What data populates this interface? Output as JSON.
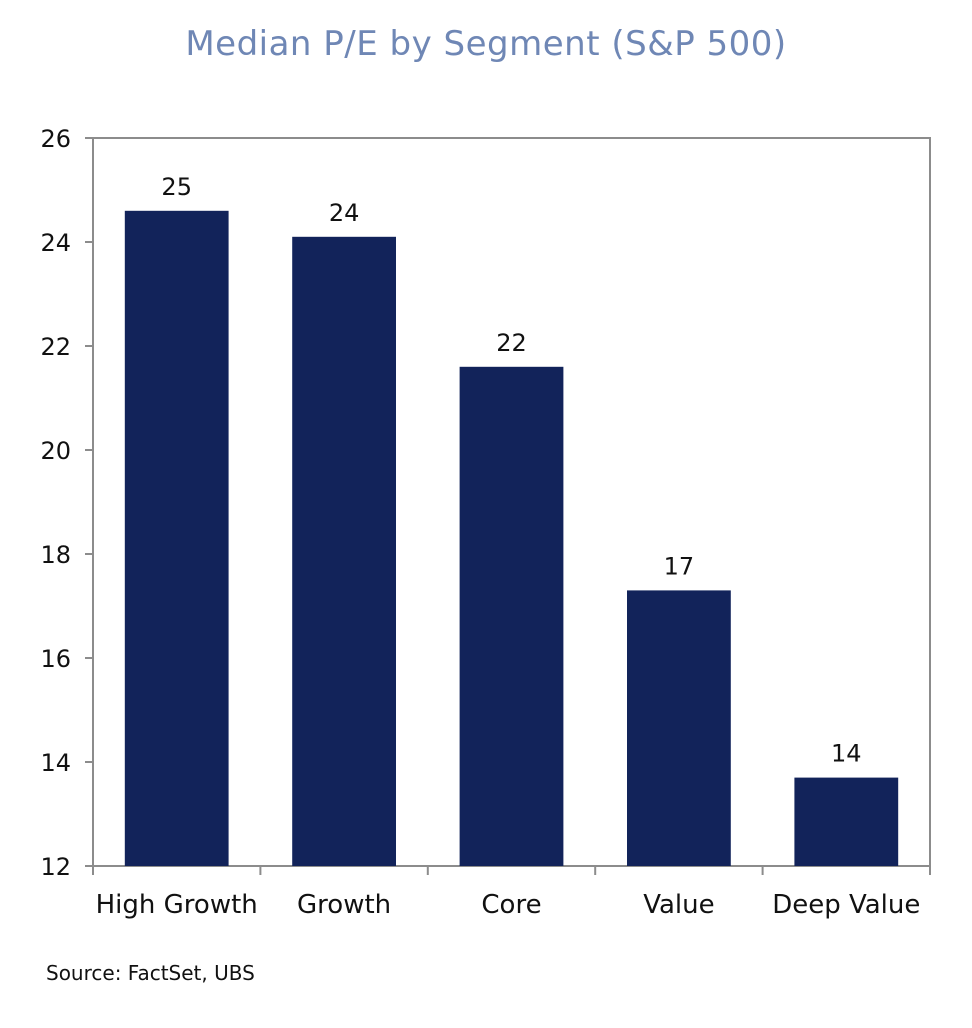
{
  "colors": {
    "title": "#6f87b5",
    "bar": "#12235a",
    "axis": "#8c8c8c"
  },
  "source": "Source: FactSet, UBS",
  "chart_data": {
    "type": "bar",
    "title": "Median P/E by Segment (S&P 500)",
    "categories": [
      "High Growth",
      "Growth",
      "Core",
      "Value",
      "Deep Value"
    ],
    "values": [
      24.6,
      24.1,
      21.6,
      17.3,
      13.7
    ],
    "data_labels": [
      "25",
      "24",
      "22",
      "17",
      "14"
    ],
    "ylim": [
      12,
      26
    ],
    "yticks": [
      12,
      14,
      16,
      18,
      20,
      22,
      24,
      26
    ],
    "xlabel": "",
    "ylabel": "",
    "grid": false,
    "legend": "none"
  }
}
